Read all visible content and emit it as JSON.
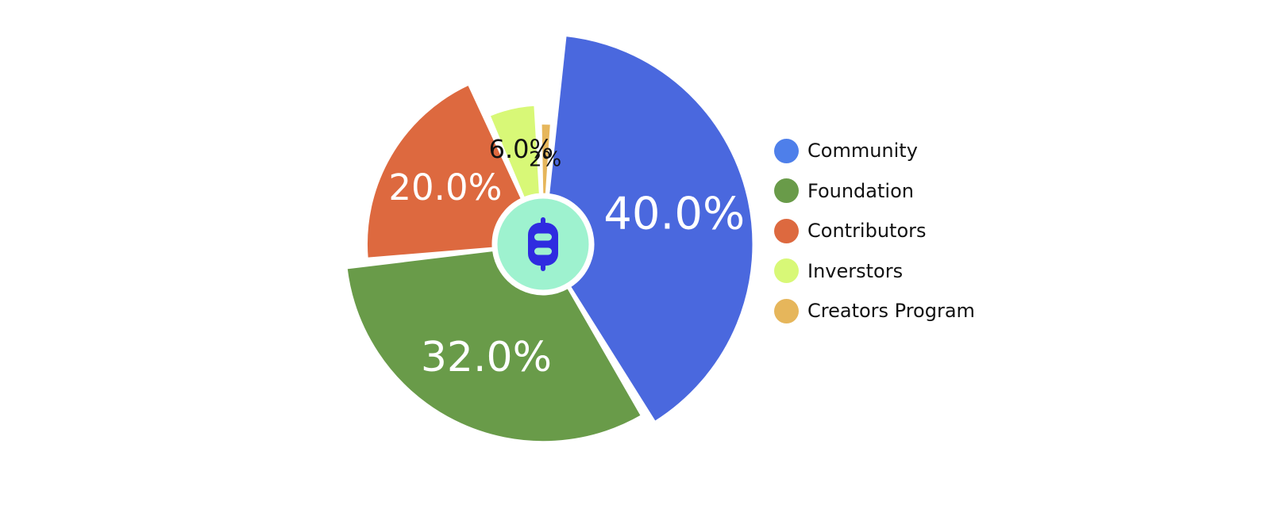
{
  "chart_data": {
    "type": "pie",
    "title": "",
    "categories": [
      "Community",
      "Foundation",
      "Contributors",
      "Inverstors",
      "Creators Program"
    ],
    "values": [
      40,
      32,
      20,
      6,
      2
    ],
    "data_labels": [
      "40.0%",
      "32.0%",
      "20.0%",
      "6.0%",
      "2%"
    ],
    "colors": [
      "#4A68DE",
      "#699B49",
      "#DD693F",
      "#D8F877",
      "#E6B65B"
    ],
    "legend_colors": [
      "#4E7FEA",
      "#699B49",
      "#DD693F",
      "#D8F877",
      "#E6B65B"
    ],
    "label_colors": [
      "#ffffff",
      "#ffffff",
      "#ffffff",
      "#111111",
      "#111111"
    ],
    "legend_position": "right",
    "center_icon": "bitcoin-logo-icon",
    "center_colors": {
      "disc": "#9EF2CF",
      "icon": "#2F2BE0"
    },
    "style": "nightingale-rose"
  }
}
